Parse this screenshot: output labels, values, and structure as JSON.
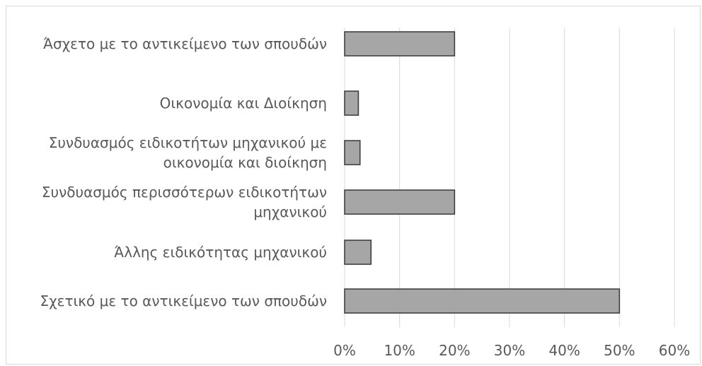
{
  "chart_data": {
    "type": "bar",
    "orientation": "horizontal",
    "title": "",
    "xlabel": "",
    "ylabel": "",
    "categories": [
      [
        "Άσχετο με το αντικείμενο των σπουδών"
      ],
      [
        "Οικονομία και Διοίκηση"
      ],
      [
        "Συνδυασμός ειδικοτήτων μηχανικού με",
        "οικονομία και διοίκηση"
      ],
      [
        "Συνδυασμός περισσότερων ειδικοτήτων",
        "μηχανικού"
      ],
      [
        "Άλλης ειδικότητας μηχανικού"
      ],
      [
        "Σχετικό με το αντικείμενο των σπουδών"
      ]
    ],
    "values": [
      20,
      2.5,
      2.8,
      20,
      4.8,
      50
    ],
    "xlim": [
      0,
      60
    ],
    "xticks": [
      "0%",
      "10%",
      "20%",
      "30%",
      "40%",
      "50%",
      "60%"
    ],
    "grid": "vertical",
    "legend": "none",
    "bar_color": "#a6a6a6",
    "bar_border_color": "#404040",
    "grid_color": "#d9d9d9",
    "text_color": "#595959"
  }
}
